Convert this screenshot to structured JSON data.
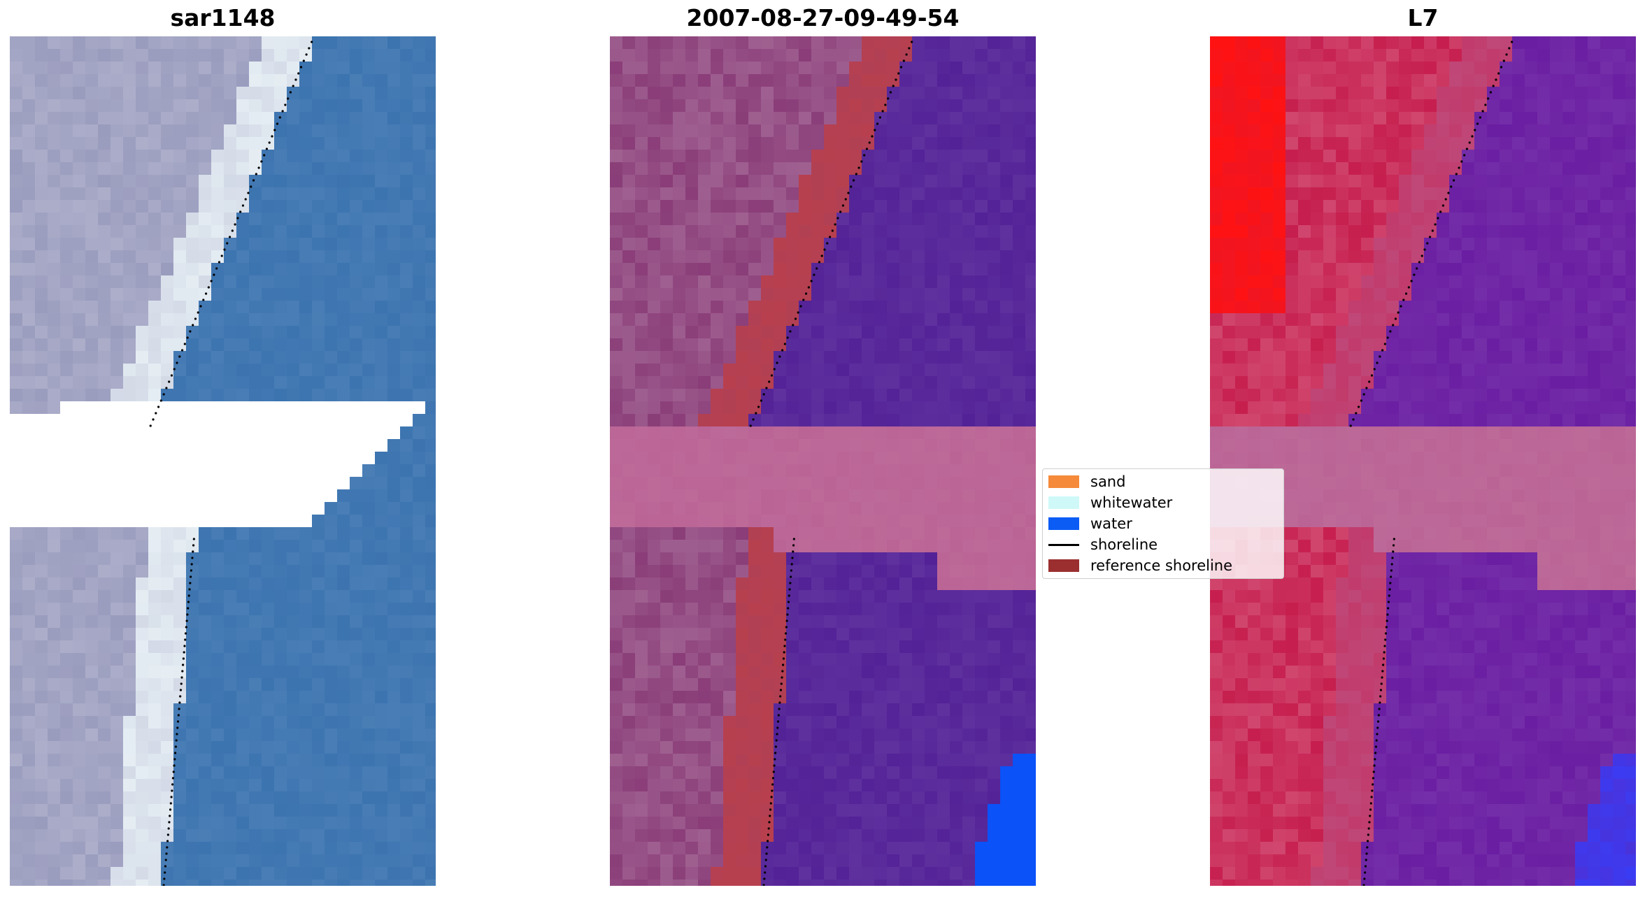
{
  "panels": [
    {
      "id": "rgb",
      "title": "sar1148"
    },
    {
      "id": "classified",
      "title": "2007-08-27-09-49-54"
    },
    {
      "id": "index",
      "title": "L7"
    }
  ],
  "legend": {
    "items": [
      {
        "label": "sand",
        "kind": "swatch",
        "color": "#f58a3a"
      },
      {
        "label": "whitewater",
        "kind": "swatch",
        "color": "#cff8f8"
      },
      {
        "label": "water",
        "kind": "swatch",
        "color": "#0b5cf5"
      },
      {
        "label": "shoreline",
        "kind": "line",
        "color": "#000000"
      },
      {
        "label": "reference shoreline",
        "kind": "swatch",
        "color": "#9b2f2f"
      }
    ]
  },
  "colors": {
    "rgb_land": "#9a9cbe",
    "rgb_whitewater": "#e6eef4",
    "rgb_water": "#3c74b0",
    "classified_land": "#8a3d78",
    "classified_sand_overlay": "#b8404e",
    "classified_water": "#532297",
    "classified_water_bright": "#0b52f8",
    "index_land": "#c61e4e",
    "index_land_bright": "#ff1212",
    "index_water": "#6a1ea2",
    "index_water_bright": "#3a3cf4",
    "reference_band": "#ba6495",
    "shoreline": "#000000"
  }
}
